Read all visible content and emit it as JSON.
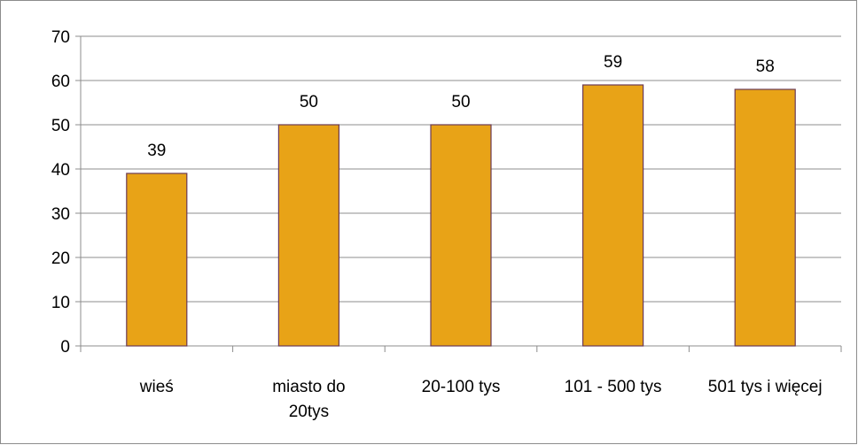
{
  "chart_data": {
    "type": "bar",
    "title": "",
    "xlabel": "",
    "ylabel": "",
    "categories": [
      "wieś",
      "miasto do 20tys",
      "20-100 tys",
      "101 - 500 tys",
      "501 tys i więcej"
    ],
    "category_lines": [
      [
        "wieś"
      ],
      [
        "miasto do",
        "20tys"
      ],
      [
        "20-100 tys"
      ],
      [
        "101 - 500 tys"
      ],
      [
        "501 tys i więcej"
      ]
    ],
    "values": [
      39,
      50,
      50,
      59,
      58
    ],
    "data_labels": [
      "39",
      "50",
      "50",
      "59",
      "58"
    ],
    "ylim": [
      0,
      70
    ],
    "yticks": [
      0,
      10,
      20,
      30,
      40,
      50,
      60,
      70
    ],
    "grid": true,
    "legend": "none",
    "colors": {
      "bar_fill": "#E8A317",
      "bar_stroke": "#6B3A55",
      "grid": "#8c8c8c",
      "axis": "#8c8c8c"
    }
  }
}
